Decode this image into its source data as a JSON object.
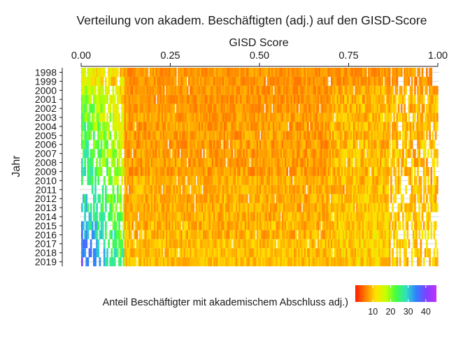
{
  "chart_data": {
    "type": "heatmap",
    "title": "Verteilung von akadem. Beschäftigten (adj.) auf den GISD-Score",
    "xlabel": "GISD Score",
    "ylabel": "Jahr",
    "x_axis_position": "top",
    "xlim": [
      0,
      1
    ],
    "x_ticks": [
      0,
      0.25,
      0.5,
      0.75,
      1
    ],
    "x_tick_labels": [
      "0.00",
      "0.25",
      "0.50",
      "0.75",
      "1.00"
    ],
    "y_categories": [
      "1998",
      "1999",
      "2000",
      "2001",
      "2002",
      "2003",
      "2004",
      "2005",
      "2006",
      "2007",
      "2008",
      "2009",
      "2010",
      "2011",
      "2012",
      "2013",
      "2014",
      "2015",
      "2016",
      "2017",
      "2018",
      "2019"
    ],
    "grid": true,
    "legend": {
      "title": "Anteil Beschäftigter mit akademischem Abschluss adj.)",
      "position": "bottom-right",
      "range": [
        0,
        46
      ],
      "ticks": [
        10,
        20,
        30,
        40
      ],
      "colors": [
        "#ff1a00",
        "#ff8000",
        "#ffe000",
        "#c8ff00",
        "#40ff40",
        "#30e0c0",
        "#3080ff",
        "#8040ff",
        "#c030ff"
      ]
    },
    "series": [
      {
        "year": "1998",
        "range": [
          0.0,
          0.98
        ],
        "min_gisd_values": [
          6.0,
          7.0
        ],
        "max_gisd_values": [
          4.0,
          5.0
        ],
        "low_gisd_share": [
          10,
          14
        ],
        "mid_gisd_share": [
          5,
          9
        ]
      },
      {
        "year": "1999",
        "range": [
          0.0,
          0.98
        ],
        "min_gisd_values": [
          6.0,
          7.0
        ],
        "max_gisd_values": [
          4.0,
          5.0
        ],
        "low_gisd_share": [
          11,
          15
        ],
        "mid_gisd_share": [
          5,
          9
        ]
      },
      {
        "year": "2000",
        "range": [
          0.0,
          1.0
        ],
        "low_gisd_share": [
          12,
          18
        ],
        "mid_gisd_share": [
          5,
          9
        ],
        "high_gisd_share": [
          6,
          11
        ]
      },
      {
        "year": "2001",
        "range": [
          0.0,
          1.0
        ],
        "low_gisd_share": [
          12,
          20
        ],
        "mid_gisd_share": [
          5,
          9
        ],
        "high_gisd_share": [
          6,
          12
        ]
      },
      {
        "year": "2002",
        "range": [
          0.0,
          1.0
        ],
        "low_gisd_share": [
          13,
          22
        ],
        "mid_gisd_share": [
          5,
          9
        ],
        "high_gisd_share": [
          6,
          12
        ]
      },
      {
        "year": "2003",
        "range": [
          0.0,
          1.0
        ],
        "low_gisd_share": [
          14,
          22
        ],
        "mid_gisd_share": [
          5,
          10
        ],
        "high_gisd_share": [
          6,
          12
        ]
      },
      {
        "year": "2004",
        "range": [
          0.0,
          1.0
        ],
        "low_gisd_share": [
          14,
          24
        ],
        "mid_gisd_share": [
          5,
          10
        ],
        "high_gisd_share": [
          6,
          12
        ]
      },
      {
        "year": "2005",
        "range": [
          0.0,
          1.0
        ],
        "low_gisd_share": [
          15,
          24
        ],
        "mid_gisd_share": [
          5,
          10
        ],
        "high_gisd_share": [
          6,
          12
        ]
      },
      {
        "year": "2006",
        "range": [
          0.0,
          1.0
        ],
        "low_gisd_share": [
          15,
          25
        ],
        "mid_gisd_share": [
          5,
          10
        ],
        "high_gisd_share": [
          6,
          13
        ]
      },
      {
        "year": "2007",
        "range": [
          0.0,
          1.0
        ],
        "low_gisd_share": [
          16,
          26
        ],
        "mid_gisd_share": [
          5,
          10
        ],
        "high_gisd_share": [
          6,
          13
        ]
      },
      {
        "year": "2008",
        "range": [
          0.0,
          1.0
        ],
        "low_gisd_share": [
          17,
          26
        ],
        "mid_gisd_share": [
          5,
          10
        ],
        "high_gisd_share": [
          6,
          13
        ]
      },
      {
        "year": "2009",
        "range": [
          0.0,
          1.0
        ],
        "low_gisd_share": [
          18,
          27
        ],
        "mid_gisd_share": [
          5,
          10
        ],
        "high_gisd_share": [
          6,
          13
        ]
      },
      {
        "year": "2010",
        "range": [
          0.0,
          1.0
        ],
        "low_gisd_share": [
          18,
          27
        ],
        "mid_gisd_share": [
          6,
          11
        ],
        "high_gisd_share": [
          6,
          13
        ]
      },
      {
        "year": "2011",
        "range": [
          0.0,
          1.0
        ],
        "low_gisd_share": [
          18,
          28
        ],
        "mid_gisd_share": [
          6,
          11
        ],
        "high_gisd_share": [
          6,
          13
        ]
      },
      {
        "year": "2012",
        "range": [
          0.0,
          1.0
        ],
        "low_gisd_share": [
          19,
          29
        ],
        "mid_gisd_share": [
          6,
          11
        ],
        "high_gisd_share": [
          7,
          13
        ]
      },
      {
        "year": "2013",
        "range": [
          0.0,
          1.0
        ],
        "low_gisd_share": [
          19,
          30
        ],
        "mid_gisd_share": [
          6,
          11
        ],
        "high_gisd_share": [
          7,
          13
        ]
      },
      {
        "year": "2014",
        "range": [
          0.0,
          1.0
        ],
        "low_gisd_share": [
          20,
          31
        ],
        "mid_gisd_share": [
          6,
          11
        ],
        "high_gisd_share": [
          7,
          13
        ]
      },
      {
        "year": "2015",
        "range": [
          0.0,
          1.0
        ],
        "low_gisd_share": [
          20,
          32
        ],
        "mid_gisd_share": [
          6,
          12
        ],
        "high_gisd_share": [
          7,
          13
        ]
      },
      {
        "year": "2016",
        "range": [
          0.0,
          1.0
        ],
        "low_gisd_share": [
          21,
          33
        ],
        "mid_gisd_share": [
          6,
          12
        ],
        "high_gisd_share": [
          7,
          14
        ]
      },
      {
        "year": "2017",
        "range": [
          0.0,
          1.0
        ],
        "low_gisd_share": [
          22,
          35
        ],
        "mid_gisd_share": [
          7,
          12
        ],
        "high_gisd_share": [
          7,
          14
        ]
      },
      {
        "year": "2018",
        "range": [
          0.0,
          1.0
        ],
        "low_gisd_share": [
          24,
          36
        ],
        "mid_gisd_share": [
          7,
          12
        ],
        "high_gisd_share": [
          7,
          14
        ]
      },
      {
        "year": "2019",
        "range": [
          0.0,
          1.0
        ],
        "low_gisd_share": [
          25,
          38
        ],
        "mid_gisd_share": [
          7,
          12
        ],
        "high_gisd_share": [
          7,
          14
        ]
      }
    ]
  }
}
